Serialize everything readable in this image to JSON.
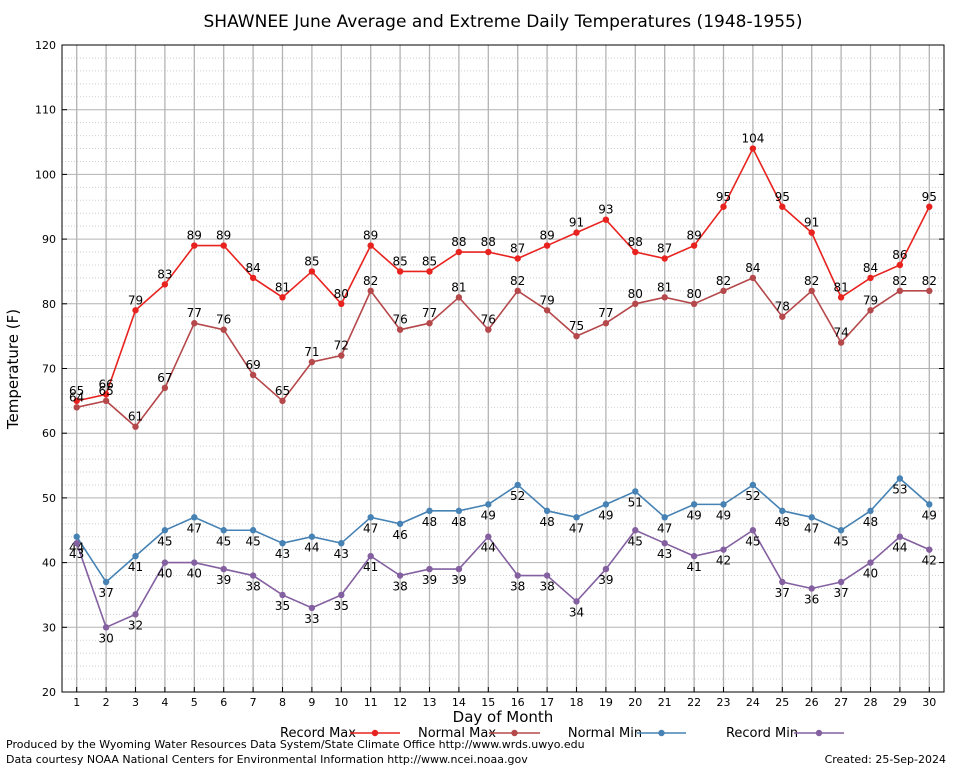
{
  "chart_data": {
    "type": "line",
    "title": "SHAWNEE June Average and Extreme Daily Temperatures (1948-1955)",
    "xlabel": "Day of Month",
    "ylabel": "Temperature (F)",
    "x": [
      1,
      2,
      3,
      4,
      5,
      6,
      7,
      8,
      9,
      10,
      11,
      12,
      13,
      14,
      15,
      16,
      17,
      18,
      19,
      20,
      21,
      22,
      23,
      24,
      25,
      26,
      27,
      28,
      29,
      30
    ],
    "xlim": [
      0.5,
      30.5
    ],
    "ylim": [
      20,
      120
    ],
    "yticks": [
      20,
      30,
      40,
      50,
      60,
      70,
      80,
      90,
      100,
      110,
      120
    ],
    "grid": true,
    "legend_position": "bottom",
    "series": [
      {
        "name": "Record Max",
        "color": "#e8231f",
        "labels_above": true,
        "values": [
          65,
          66,
          79,
          83,
          89,
          89,
          84,
          81,
          85,
          80,
          89,
          85,
          85,
          88,
          88,
          87,
          89,
          91,
          93,
          88,
          87,
          89,
          95,
          104,
          95,
          91,
          81,
          84,
          86,
          95
        ]
      },
      {
        "name": "Normal Max",
        "color": "#b5484b",
        "labels_above": true,
        "values": [
          64,
          65,
          61,
          67,
          77,
          76,
          69,
          65,
          71,
          72,
          82,
          76,
          77,
          81,
          76,
          82,
          79,
          75,
          77,
          80,
          81,
          80,
          82,
          84,
          78,
          82,
          74,
          79,
          82,
          82
        ]
      },
      {
        "name": "Normal Min",
        "color": "#4682b4",
        "labels_above": false,
        "values": [
          44,
          37,
          41,
          45,
          47,
          45,
          45,
          43,
          44,
          43,
          47,
          46,
          48,
          48,
          49,
          52,
          48,
          47,
          49,
          51,
          47,
          49,
          49,
          52,
          48,
          47,
          45,
          48,
          53,
          49
        ]
      },
      {
        "name": "Record Min",
        "color": "#8460a0",
        "labels_above": false,
        "values": [
          43,
          30,
          32,
          40,
          40,
          39,
          38,
          35,
          33,
          35,
          41,
          38,
          39,
          39,
          44,
          38,
          38,
          34,
          39,
          45,
          43,
          41,
          42,
          45,
          37,
          36,
          37,
          40,
          44,
          42
        ]
      }
    ]
  },
  "footer": {
    "produced_by": "Produced by the Wyoming Water Resources Data System/State Climate Office http://www.wrds.uwyo.edu",
    "data_courtesy": "Data courtesy NOAA National Centers for Environmental Information http://www.ncei.noaa.gov",
    "created": "Created: 25-Sep-2024"
  }
}
